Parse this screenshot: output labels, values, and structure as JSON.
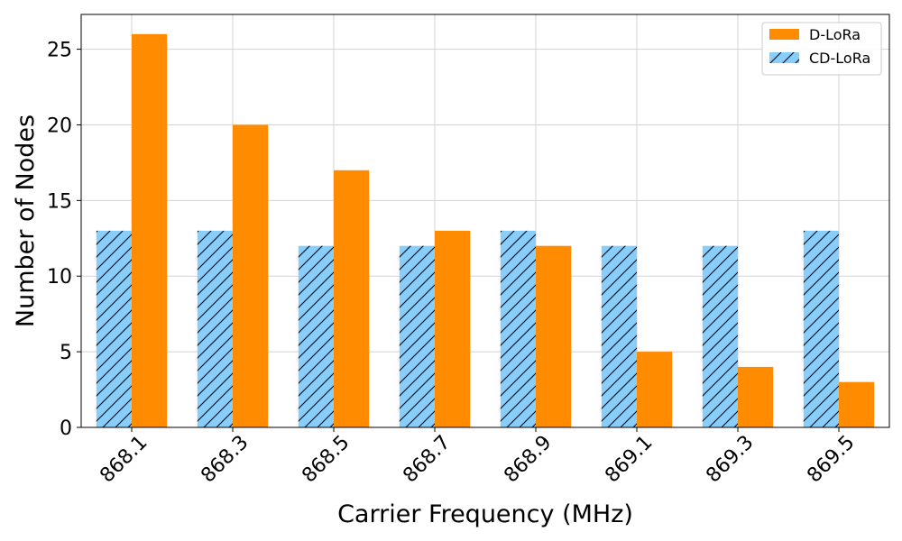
{
  "chart_data": {
    "type": "bar",
    "title": "",
    "xlabel": "Carrier Frequency (MHz)",
    "ylabel": "Number of Nodes",
    "categories": [
      "868.1",
      "868.3",
      "868.5",
      "868.7",
      "868.9",
      "869.1",
      "869.3",
      "869.5"
    ],
    "series": [
      {
        "name": "CD-LoRa",
        "values": [
          13,
          13,
          12,
          12,
          13,
          12,
          12,
          13
        ],
        "color": "#87CEFA",
        "hatch": "diagonal"
      },
      {
        "name": "D-LoRa",
        "values": [
          26,
          20,
          17,
          13,
          12,
          5,
          4,
          3
        ],
        "color": "#FF8C00"
      }
    ],
    "ylim": [
      0,
      27.3
    ],
    "yticks": [
      0,
      5,
      10,
      15,
      20,
      25
    ],
    "grid": true,
    "legend_position": "top-right",
    "legend_order": [
      "D-LoRa",
      "CD-LoRa"
    ]
  }
}
